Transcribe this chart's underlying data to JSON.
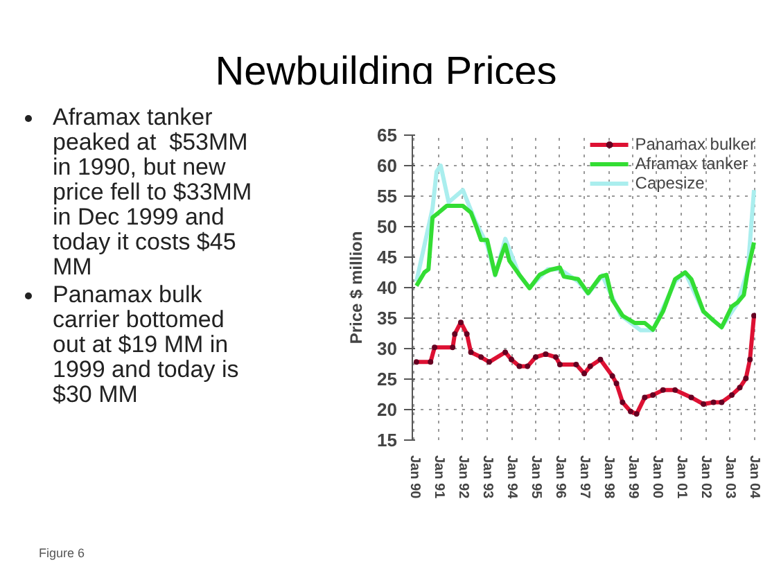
{
  "chart_data": {
    "type": "line",
    "title": "Newbuilding Prices",
    "ylabel": "Price $ million",
    "annotations": [
      "Aframax tanker peaked at  $53MM in 1990, but new price fell to $33MM in Dec 1999 and today it costs $45 MM",
      "Panamax bulk carrier bottomed out at $19 MM in 1999 and today is $30 MM",
      "Figure 6"
    ],
    "xlim": [
      "1989-12",
      "2004-02"
    ],
    "xticks": [
      {
        "value": "1990-01",
        "label": "Jan 90"
      },
      {
        "value": "1991-01",
        "label": "Jan 91"
      },
      {
        "value": "1992-01",
        "label": "Jan 92"
      },
      {
        "value": "1993-01",
        "label": "Jan 93"
      },
      {
        "value": "1994-01",
        "label": "Jan 94"
      },
      {
        "value": "1995-01",
        "label": "Jan 95"
      },
      {
        "value": "1996-01",
        "label": "Jan 96"
      },
      {
        "value": "1997-01",
        "label": "Jan 97"
      },
      {
        "value": "1998-01",
        "label": "Jan 98"
      },
      {
        "value": "1999-01",
        "label": "Jan 99"
      },
      {
        "value": "2000-01",
        "label": "Jan 00"
      },
      {
        "value": "2001-01",
        "label": "Jan 01"
      },
      {
        "value": "2002-01",
        "label": "Jan 02"
      },
      {
        "value": "2003-01",
        "label": "Jan 03"
      },
      {
        "value": "2004-01",
        "label": "Jan 04"
      }
    ],
    "ylim": [
      15,
      65
    ],
    "yticks": [
      15,
      20,
      25,
      30,
      35,
      40,
      45,
      50,
      55,
      60,
      65
    ],
    "grid": true,
    "legend": "top right",
    "line_style": "solid",
    "series": [
      {
        "name": "Capesize",
        "color": "#aaeeee",
        "x": [
          "1990-02",
          "1990-10",
          "1990-12",
          "1991-02",
          "1991-06",
          "1992-01",
          "1992-07",
          "1993-01",
          "1993-05",
          "1993-10",
          "1994-05",
          "1994-10",
          "1995-07",
          "1996-01",
          "1996-10",
          "1997-03",
          "1997-10",
          "1998-07",
          "1999-05",
          "1999-11",
          "2000-10",
          "2001-03",
          "2001-12",
          "2002-09",
          "2003-05",
          "2003-10",
          "2004-01"
        ],
        "values": [
          41,
          53,
          59,
          60,
          54,
          56,
          51,
          47,
          42,
          48,
          42,
          40,
          43,
          43,
          41,
          39,
          42,
          35.5,
          33,
          33,
          41,
          42.5,
          36,
          33.5,
          37.5,
          43,
          56
        ]
      },
      {
        "name": "Aframax tanker",
        "color": "#33dd33",
        "x": [
          "1990-02",
          "1990-06",
          "1990-08",
          "1990-10",
          "1991-01",
          "1991-05",
          "1992-01",
          "1992-05",
          "1992-08",
          "1992-10",
          "1993-01",
          "1993-05",
          "1993-08",
          "1993-10",
          "1993-12",
          "1994-05",
          "1994-10",
          "1995-03",
          "1995-08",
          "1996-01",
          "1996-03",
          "1996-10",
          "1997-03",
          "1997-09",
          "1997-12",
          "1998-03",
          "1998-08",
          "1999-02",
          "1999-07",
          "1999-11",
          "2000-04",
          "2000-10",
          "2001-03",
          "2001-06",
          "2001-12",
          "2002-05",
          "2002-09",
          "2003-02",
          "2003-05",
          "2003-08",
          "2003-10",
          "2004-01"
        ],
        "values": [
          40.3,
          42.5,
          43,
          51.5,
          52.3,
          53.4,
          53.4,
          52.3,
          49.7,
          47.8,
          47.8,
          42.1,
          45.2,
          47,
          44.4,
          42.1,
          39.9,
          42.1,
          42.9,
          43.3,
          41.8,
          41.4,
          39.1,
          41.8,
          42.1,
          38,
          35.4,
          34.2,
          34.2,
          33.1,
          36.1,
          41.4,
          42.5,
          41.4,
          36.1,
          34.6,
          33.5,
          36.9,
          37.6,
          38.8,
          42.9,
          47.4
        ]
      },
      {
        "name": "Panamax bulker",
        "color": "#dd1133",
        "marker": "circle",
        "x": [
          "1990-02",
          "1990-09",
          "1990-11",
          "1991-08",
          "1991-09",
          "1991-12",
          "1992-03",
          "1992-05",
          "1992-10",
          "1993-02",
          "1993-10",
          "1994-01",
          "1994-05",
          "1994-09",
          "1995-01",
          "1995-06",
          "1995-11",
          "1996-01",
          "1996-09",
          "1997-01",
          "1997-04",
          "1997-09",
          "1998-03",
          "1998-05",
          "1998-08",
          "1998-12",
          "1999-03",
          "1999-07",
          "1999-11",
          "2000-04",
          "2000-10",
          "2001-06",
          "2001-12",
          "2002-05",
          "2002-09",
          "2003-02",
          "2003-06",
          "2003-09",
          "2003-11",
          "2004-01"
        ],
        "values": [
          27.8,
          27.8,
          30.2,
          30.2,
          32.4,
          34.3,
          32.4,
          29.4,
          28.6,
          27.8,
          29.4,
          28.2,
          27.1,
          27.1,
          28.6,
          29.1,
          28.6,
          27.4,
          27.4,
          25.9,
          27.1,
          28.2,
          25.5,
          24.3,
          21.2,
          19.7,
          19.3,
          22.0,
          22.4,
          23.2,
          23.2,
          22.0,
          20.9,
          21.2,
          21.2,
          22.4,
          23.6,
          25.1,
          28.2,
          35.4
        ]
      }
    ]
  }
}
